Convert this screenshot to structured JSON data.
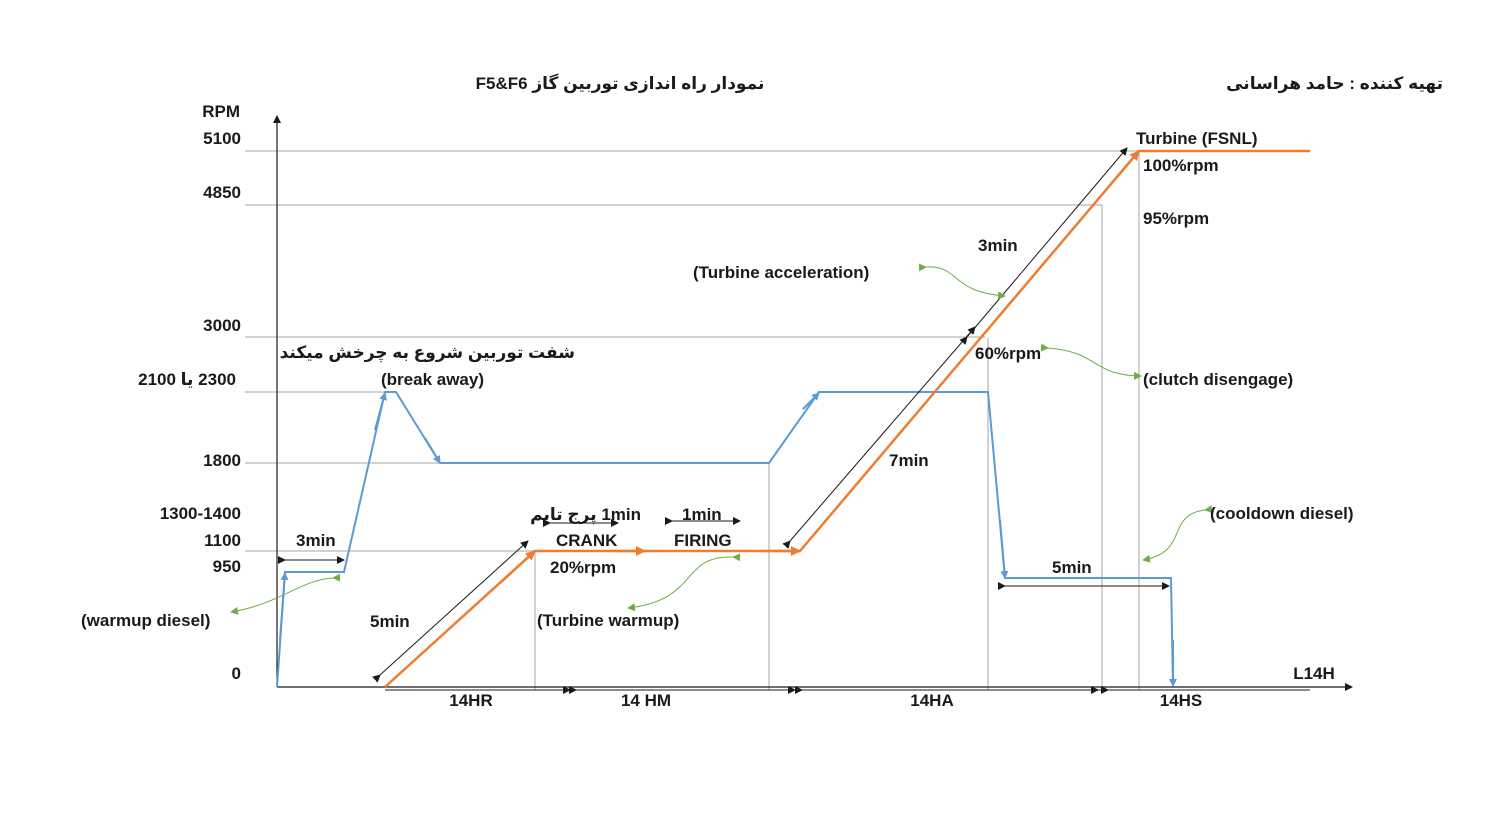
{
  "title": "نمودار راه اندازی توربین گاز F5&F6",
  "author": "تهیه کننده : حامد هراسانی",
  "y_axis_label": "RPM",
  "x_axis_label": "L14H",
  "y_ticks": [
    "5100",
    "4850",
    "3000",
    "2300 یا 2100",
    "1800",
    "1300-1400",
    "1100",
    "950",
    "0"
  ],
  "phases": [
    "14HR",
    "14 HM",
    "14HA",
    "14HS"
  ],
  "annotations": {
    "turbine_fsnl": "Turbine  (FSNL)",
    "rpm100": "100%rpm",
    "rpm95": "95%rpm",
    "t3min_top": "3min",
    "turbine_accel": "(Turbine  acceleration)",
    "shaft_fa": "شفت توربین شروع به چرخش میکند",
    "break_away": "(break away)",
    "rpm60": "60%rpm",
    "clutch": "(clutch disengage)",
    "t7min": "7min",
    "purge": "1min پرج تایم",
    "fire1min": "1min",
    "crank": "CRANK",
    "firing": "FIRING",
    "cooldown": "(cooldown diesel)",
    "t3min_left": "3min",
    "rpm20": "20%rpm",
    "t5min_right": "5min",
    "warmup_diesel": "(warmup diesel)",
    "t5min_left": "5min",
    "turbine_warmup": "(Turbine warmup)"
  },
  "colors": {
    "diesel_line": "#5b9bd5",
    "turbine_line": "#ed7d31",
    "grid": "#a6a6a6",
    "callout": "#70ad47"
  }
}
